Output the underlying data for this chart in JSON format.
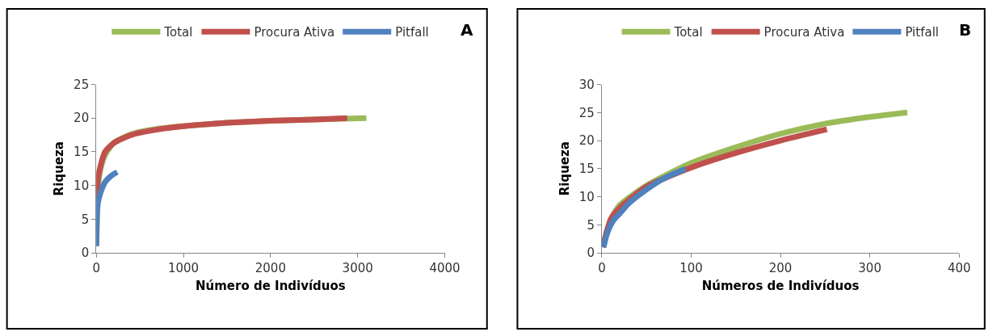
{
  "chart_data": [
    {
      "type": "line",
      "xlabel": "Número de Indivíduos",
      "ylabel": "Riqueza",
      "annotations": [
        "A"
      ],
      "xlim": [
        0,
        4000
      ],
      "xticks": [
        0,
        1000,
        2000,
        3000,
        4000
      ],
      "ylim": [
        0,
        25
      ],
      "yticks": [
        0,
        5,
        10,
        15,
        20,
        25
      ],
      "grid": false,
      "legend": "top",
      "marker": "none",
      "line_style": "solid",
      "series": [
        {
          "name": "Total",
          "color": "#9bbb59",
          "x": [
            1,
            20,
            50,
            100,
            200,
            400,
            700,
            1000,
            1500,
            2000,
            2500,
            3100
          ],
          "values": [
            1,
            10,
            12.5,
            14.5,
            16.3,
            17.6,
            18.4,
            18.8,
            19.3,
            19.6,
            19.8,
            20
          ]
        },
        {
          "name": "Procura Ativa",
          "color": "#c0504d",
          "x": [
            1,
            20,
            50,
            100,
            200,
            400,
            700,
            1000,
            1500,
            2000,
            2500,
            2880
          ],
          "values": [
            8,
            11,
            13,
            15,
            16.3,
            17.5,
            18.3,
            18.8,
            19.3,
            19.6,
            19.8,
            20
          ]
        },
        {
          "name": "Pitfall",
          "color": "#4f81bd",
          "x": [
            1,
            5,
            10,
            20,
            50,
            100,
            150,
            200,
            240
          ],
          "values": [
            1,
            4,
            6,
            7.5,
            9,
            10.5,
            11.2,
            11.7,
            12
          ]
        }
      ]
    },
    {
      "type": "line",
      "xlabel": "Números de Indivíduos",
      "ylabel": "Riqueza",
      "annotations": [
        "B"
      ],
      "xlim": [
        0,
        400
      ],
      "xticks": [
        0,
        100,
        200,
        300,
        400
      ],
      "ylim": [
        0,
        30
      ],
      "yticks": [
        0,
        5,
        10,
        15,
        20,
        25,
        30
      ],
      "grid": false,
      "legend": "top",
      "marker": "none",
      "line_style": "solid",
      "series": [
        {
          "name": "Total",
          "color": "#9bbb59",
          "x": [
            1,
            5,
            10,
            20,
            50,
            100,
            150,
            200,
            250,
            300,
            342
          ],
          "values": [
            1,
            3.5,
            6,
            8.5,
            12,
            16,
            18.8,
            21.2,
            23,
            24.2,
            25
          ]
        },
        {
          "name": "Procura Ativa",
          "color": "#c0504d",
          "x": [
            1,
            5,
            10,
            20,
            50,
            100,
            150,
            200,
            252
          ],
          "values": [
            1,
            3.5,
            6,
            8,
            11.8,
            15.2,
            17.8,
            20,
            22
          ]
        },
        {
          "name": "Pitfall",
          "color": "#4f81bd",
          "x": [
            2,
            5,
            10,
            15,
            20,
            30,
            50,
            70,
            94
          ],
          "values": [
            1,
            3,
            5,
            6.2,
            7,
            8.8,
            11.3,
            13.3,
            15
          ]
        }
      ]
    }
  ]
}
